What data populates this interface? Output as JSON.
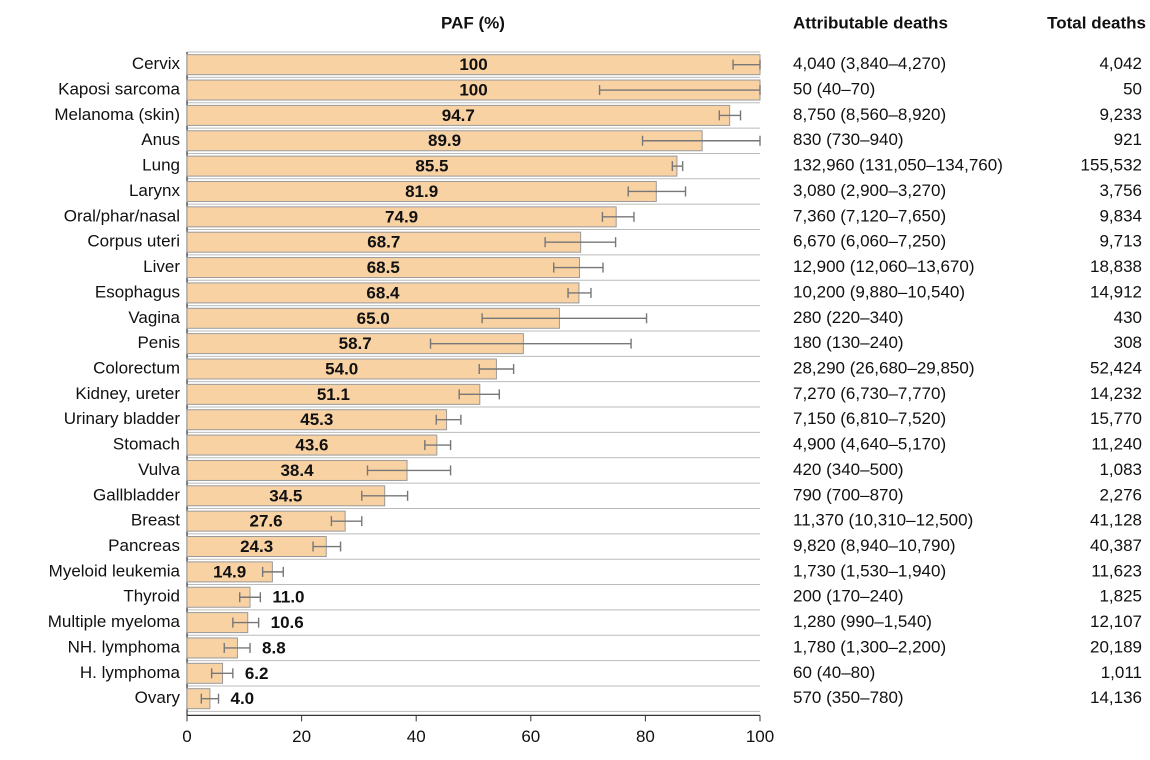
{
  "chart_data": {
    "type": "bar",
    "orientation": "horizontal",
    "title": "PAF (%)",
    "color": "#f9d2a4",
    "categories": [
      "Cervix",
      "Kaposi sarcoma",
      "Melanoma (skin)",
      "Anus",
      "Lung",
      "Larynx",
      "Oral/phar/nasal",
      "Corpus uteri",
      "Liver",
      "Esophagus",
      "Vagina",
      "Penis",
      "Colorectum",
      "Kidney, ureter",
      "Urinary bladder",
      "Stomach",
      "Vulva",
      "Gallbladder",
      "Breast",
      "Pancreas",
      "Myeloid leukemia",
      "Thyroid",
      "Multiple myeloma",
      "NH. lymphoma",
      "H. lymphoma",
      "Ovary"
    ],
    "values": [
      100,
      100,
      94.7,
      89.9,
      85.5,
      81.9,
      74.9,
      68.7,
      68.5,
      68.4,
      65,
      58.7,
      54,
      51.1,
      45.3,
      43.6,
      38.4,
      34.5,
      27.6,
      24.3,
      14.9,
      11,
      10.6,
      8.8,
      6.2,
      4
    ],
    "value_labels": [
      "100",
      "100",
      "94.7",
      "89.9",
      "85.5",
      "81.9",
      "74.9",
      "68.7",
      "68.5",
      "68.4",
      "65.0",
      "58.7",
      "54.0",
      "51.1",
      "45.3",
      "43.6",
      "38.4",
      "34.5",
      "27.6",
      "24.3",
      "14.9",
      "11.0",
      "10.6",
      "8.8",
      "6.2",
      "4.0"
    ],
    "ci_low": [
      95.3,
      72,
      92.9,
      79.5,
      84.7,
      77,
      72.5,
      62.5,
      64,
      66.5,
      51.5,
      42.5,
      51,
      47.5,
      43.5,
      41.5,
      31.5,
      30.5,
      25.2,
      22,
      13.2,
      9.2,
      8,
      6.5,
      4.3,
      2.5
    ],
    "ci_high": [
      100,
      100,
      96.6,
      100,
      86.5,
      87,
      78,
      74.8,
      72.6,
      70.5,
      80.2,
      77.5,
      57,
      54.5,
      47.8,
      46,
      46,
      38.5,
      30.5,
      26.8,
      16.8,
      12.8,
      12.5,
      11,
      8,
      5.5
    ],
    "xlim": [
      0,
      100
    ],
    "xticks": [
      0,
      20,
      40,
      60,
      80,
      100
    ],
    "columns": [
      {
        "header": "Attributable deaths",
        "cells": [
          "4,040 (3,840–4,270)",
          "50 (40–70)",
          "8,750 (8,560–8,920)",
          "830 (730–940)",
          "132,960 (131,050–134,760)",
          "3,080 (2,900–3,270)",
          "7,360 (7,120–7,650)",
          "6,670 (6,060–7,250)",
          "12,900 (12,060–13,670)",
          "10,200 (9,880–10,540)",
          "280 (220–340)",
          "180 (130–240)",
          "28,290 (26,680–29,850)",
          "7,270 (6,730–7,770)",
          "7,150 (6,810–7,520)",
          "4,900 (4,640–5,170)",
          "420 (340–500)",
          "790 (700–870)",
          "11,370 (10,310–12,500)",
          "9,820 (8,940–10,790)",
          "1,730 (1,530–1,940)",
          "200 (170–240)",
          "1,280 (990–1,540)",
          "1,780 (1,300–2,200)",
          "60 (40–80)",
          "570 (350–780)"
        ]
      },
      {
        "header": "Total deaths",
        "cells": [
          "4,042",
          "50",
          "9,233",
          "921",
          "155,532",
          "3,756",
          "9,834",
          "9,713",
          "18,838",
          "14,912",
          "430",
          "308",
          "52,424",
          "14,232",
          "15,770",
          "11,240",
          "1,083",
          "2,276",
          "41,128",
          "40,387",
          "11,623",
          "1,825",
          "12,107",
          "20,189",
          "1,011",
          "14,136"
        ]
      }
    ]
  }
}
